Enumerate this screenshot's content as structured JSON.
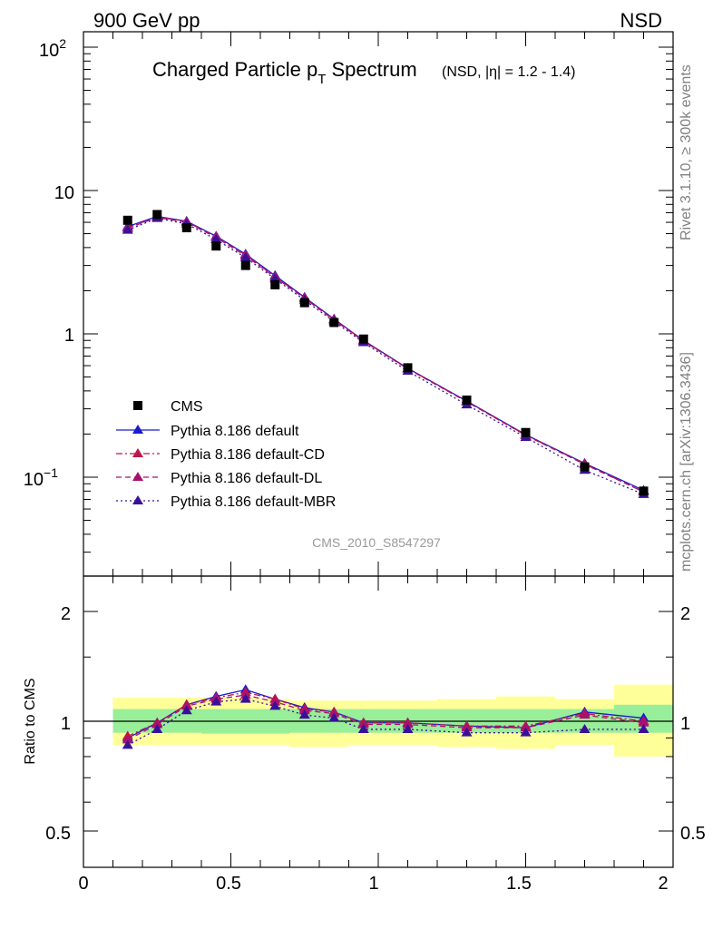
{
  "header": {
    "left_label": "900 GeV pp",
    "right_label": "NSD",
    "watermark": "CMS_2010_S8547297",
    "side_label_top": "Rivet 3.1.10, ≥ 300k events",
    "side_label_bottom": "mcplots.cern.ch [arXiv:1306.3436]"
  },
  "colors": {
    "cms": "#000000",
    "default": "#1a1ad0",
    "cd": "#c0144a",
    "dl": "#a8126e",
    "mbr": "#3a109a",
    "band_inner": "#99ee99",
    "band_outer": "#ffff99",
    "watermark": "#9a9a9a"
  },
  "chart_data": [
    {
      "type": "scatter",
      "panel": "main",
      "title": "Charged Particle p",
      "title_sub": "T",
      "title_tail": " Spectrum",
      "title_suffix": "(NSD, |η| = 1.2 - 1.4)",
      "xlabel": "",
      "ylabel": "",
      "xlim": [
        0,
        2
      ],
      "ylim": [
        0.02,
        130
      ],
      "yscale": "log",
      "ytick_labels": [
        "10",
        "1"
      ],
      "ytick_exp_labels": [
        {
          "base": "10",
          "exp": "2"
        },
        {
          "base": "10",
          "exp": "−1"
        }
      ],
      "x": [
        0.15,
        0.25,
        0.35,
        0.45,
        0.55,
        0.65,
        0.75,
        0.85,
        0.95,
        1.1,
        1.3,
        1.5,
        1.7,
        1.9
      ],
      "series": [
        {
          "key": "cms",
          "name": "CMS",
          "style": "square",
          "values": [
            6.2,
            6.8,
            5.5,
            4.1,
            3.0,
            2.2,
            1.65,
            1.2,
            0.92,
            0.58,
            0.345,
            0.205,
            0.118,
            0.08
          ]
        },
        {
          "key": "default",
          "name": "Pythia 8.186 default",
          "style": "solid",
          "values": [
            5.6,
            6.6,
            6.1,
            4.8,
            3.6,
            2.55,
            1.8,
            1.27,
            0.9,
            0.575,
            0.34,
            0.198,
            0.125,
            0.081
          ]
        },
        {
          "key": "cd",
          "name": "Pythia 8.186 default-CD",
          "style": "dashdot",
          "values": [
            5.5,
            6.55,
            6.05,
            4.75,
            3.55,
            2.5,
            1.78,
            1.26,
            0.895,
            0.572,
            0.338,
            0.197,
            0.124,
            0.079
          ]
        },
        {
          "key": "dl",
          "name": "Pythia 8.186 default-DL",
          "style": "dashed",
          "values": [
            5.45,
            6.5,
            6.0,
            4.7,
            3.5,
            2.48,
            1.77,
            1.25,
            0.89,
            0.57,
            0.336,
            0.196,
            0.123,
            0.079
          ]
        },
        {
          "key": "mbr",
          "name": "Pythia 8.186 default-MBR",
          "style": "dotted",
          "values": [
            5.3,
            6.4,
            5.85,
            4.55,
            3.4,
            2.42,
            1.72,
            1.22,
            0.87,
            0.55,
            0.32,
            0.19,
            0.112,
            0.076
          ]
        }
      ]
    },
    {
      "type": "line",
      "panel": "ratio",
      "ylabel": "Ratio to CMS",
      "xlim": [
        0,
        2
      ],
      "ylim": [
        0.4,
        2.3
      ],
      "yscale": "log",
      "ytick_labels": [
        "2",
        "1",
        "0.5"
      ],
      "xtick_labels": [
        "0",
        "0.5",
        "1",
        "1.5",
        "2"
      ],
      "bands": {
        "bin_edges": [
          0.1,
          0.2,
          0.3,
          0.4,
          0.5,
          0.6,
          0.7,
          0.8,
          0.9,
          1.0,
          1.2,
          1.4,
          1.6,
          1.8,
          2.0
        ],
        "inner_low": [
          0.93,
          0.93,
          0.93,
          0.925,
          0.925,
          0.925,
          0.93,
          0.93,
          0.93,
          0.93,
          0.93,
          0.93,
          0.93,
          0.93
        ],
        "inner_high": [
          1.08,
          1.08,
          1.08,
          1.08,
          1.08,
          1.08,
          1.08,
          1.08,
          1.08,
          1.08,
          1.08,
          1.08,
          1.08,
          1.11
        ],
        "outer_low": [
          0.86,
          0.86,
          0.86,
          0.86,
          0.86,
          0.86,
          0.85,
          0.85,
          0.86,
          0.86,
          0.85,
          0.84,
          0.86,
          0.8
        ],
        "outer_high": [
          1.16,
          1.16,
          1.16,
          1.16,
          1.16,
          1.15,
          1.14,
          1.14,
          1.14,
          1.14,
          1.15,
          1.17,
          1.15,
          1.26
        ]
      },
      "x": [
        0.15,
        0.25,
        0.35,
        0.45,
        0.55,
        0.65,
        0.75,
        0.85,
        0.95,
        1.1,
        1.3,
        1.5,
        1.7,
        1.9
      ],
      "series": [
        {
          "key": "default",
          "name": "Pythia 8.186 default",
          "style": "solid",
          "values": [
            0.9,
            0.99,
            1.11,
            1.17,
            1.22,
            1.15,
            1.09,
            1.06,
            0.99,
            0.99,
            0.97,
            0.96,
            1.06,
            1.02
          ]
        },
        {
          "key": "cd",
          "name": "Pythia 8.186 default-CD",
          "style": "dashdot",
          "values": [
            0.91,
            0.99,
            1.11,
            1.16,
            1.2,
            1.15,
            1.08,
            1.06,
            0.99,
            0.99,
            0.97,
            0.97,
            1.05,
            1.0
          ]
        },
        {
          "key": "dl",
          "name": "Pythia 8.186 default-DL",
          "style": "dashed",
          "values": [
            0.89,
            0.98,
            1.1,
            1.15,
            1.18,
            1.13,
            1.07,
            1.05,
            0.98,
            0.98,
            0.96,
            0.96,
            1.04,
            0.99
          ]
        },
        {
          "key": "mbr",
          "name": "Pythia 8.186 default-MBR",
          "style": "dotted",
          "values": [
            0.86,
            0.95,
            1.07,
            1.13,
            1.15,
            1.1,
            1.04,
            1.02,
            0.95,
            0.95,
            0.93,
            0.93,
            0.95,
            0.95
          ]
        }
      ]
    }
  ]
}
